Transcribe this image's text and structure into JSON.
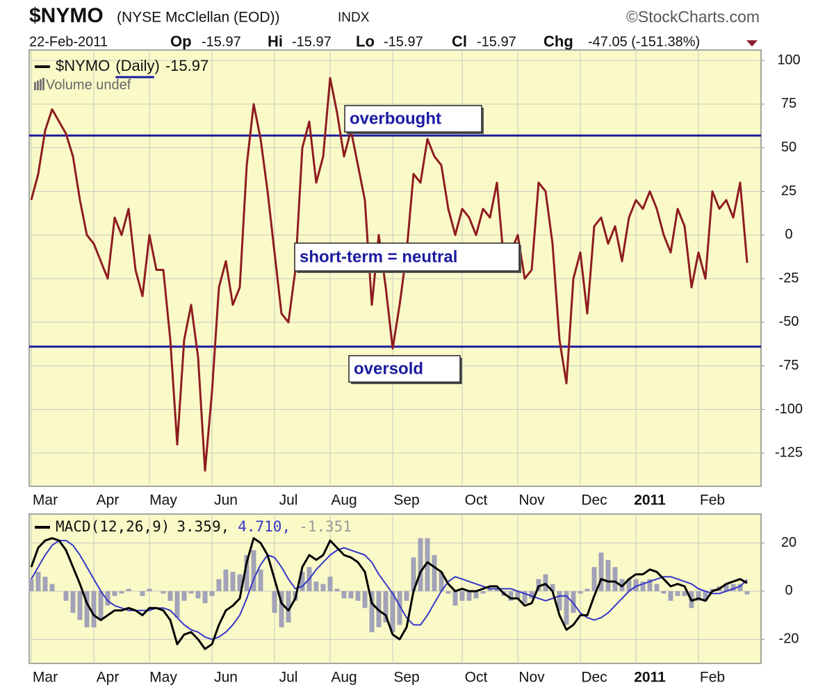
{
  "chart_data": [
    {
      "type": "line",
      "title": "$NYMO",
      "subtitle": "(NYSE McClellan (EOD))",
      "exchange": "INDX",
      "source": "©StockCharts.com",
      "date": "22-Feb-2011",
      "quote": [
        {
          "name": "Op",
          "value": -15.97
        },
        {
          "name": "Hi",
          "value": -15.97
        },
        {
          "name": "Lo",
          "value": -15.97
        },
        {
          "name": "Cl",
          "value": -15.97
        }
      ],
      "change_name": "Chg",
      "change_text": "-47.05 (-151.38%)",
      "period": "(Daily)",
      "last_value": -15.97,
      "volume_note": "Volume undef",
      "categories": [
        null,
        null,
        "Mar",
        null,
        null,
        null,
        null,
        null,
        null,
        null,
        null,
        "Apr",
        null,
        null,
        null,
        null,
        null,
        null,
        null,
        "May",
        null,
        null,
        null,
        null,
        null,
        null,
        null,
        null,
        "Jun",
        null,
        null,
        null,
        null,
        null,
        null,
        null,
        null,
        "Jul",
        null,
        null,
        null,
        null,
        null,
        null,
        null,
        "Aug",
        null,
        null,
        null,
        null,
        null,
        null,
        null,
        null,
        "Sep",
        null,
        null,
        null,
        null,
        null,
        null,
        null,
        null,
        null,
        "Oct",
        null,
        null,
        null,
        null,
        null,
        null,
        null,
        "Nov",
        null,
        null,
        null,
        null,
        null,
        null,
        null,
        null,
        "Dec",
        null,
        null,
        null,
        null,
        null,
        null,
        null,
        "2011",
        null,
        null,
        null,
        null,
        null,
        null,
        null,
        null,
        "Feb",
        null,
        null,
        null,
        null,
        null
      ],
      "series": [
        {
          "name": "$NYMO",
          "color": "#8e1c20",
          "style": "line",
          "values": [
            20,
            35,
            60,
            72,
            65,
            58,
            45,
            20,
            0,
            -5,
            -15,
            -25,
            10,
            0,
            15,
            -20,
            -35,
            0,
            -20,
            -20,
            -60,
            -120,
            -60,
            -40,
            -70,
            -135,
            -90,
            -30,
            -15,
            -40,
            -30,
            40,
            75,
            55,
            25,
            -10,
            -45,
            -50,
            -20,
            50,
            65,
            30,
            45,
            90,
            70,
            45,
            60,
            40,
            20,
            -40,
            0,
            -30,
            -65,
            -40,
            -10,
            35,
            30,
            55,
            45,
            40,
            15,
            0,
            15,
            10,
            0,
            15,
            10,
            30,
            -15,
            -10,
            0,
            -25,
            -20,
            30,
            25,
            -5,
            -60,
            -85,
            -25,
            -10,
            -45,
            5,
            10,
            -5,
            5,
            -15,
            10,
            20,
            15,
            25,
            15,
            0,
            -10,
            15,
            5,
            -30,
            -10,
            -25,
            25,
            15,
            20,
            10,
            30,
            -15.97
          ]
        }
      ],
      "reference_lines": [
        57,
        -64
      ],
      "reference_color": "#1a1aa0",
      "annotations": [
        "overbought",
        "short-term = neutral",
        "oversold"
      ],
      "annotation_color": "#1a1aa0",
      "ylim": [
        -144,
        106
      ],
      "yticks": [
        100,
        75,
        50,
        25,
        0,
        -25,
        -50,
        -75,
        -100,
        -125
      ],
      "grid": true,
      "background": "#fafac8"
    },
    {
      "type": "line",
      "categories": [
        null,
        null,
        "Mar",
        null,
        null,
        null,
        null,
        null,
        null,
        null,
        null,
        "Apr",
        null,
        null,
        null,
        null,
        null,
        null,
        null,
        "May",
        null,
        null,
        null,
        null,
        null,
        null,
        null,
        null,
        "Jun",
        null,
        null,
        null,
        null,
        null,
        null,
        null,
        null,
        "Jul",
        null,
        null,
        null,
        null,
        null,
        null,
        null,
        "Aug",
        null,
        null,
        null,
        null,
        null,
        null,
        null,
        null,
        "Sep",
        null,
        null,
        null,
        null,
        null,
        null,
        null,
        null,
        null,
        "Oct",
        null,
        null,
        null,
        null,
        null,
        null,
        null,
        "Nov",
        null,
        null,
        null,
        null,
        null,
        null,
        null,
        null,
        "Dec",
        null,
        null,
        null,
        null,
        null,
        null,
        null,
        "2011",
        null,
        null,
        null,
        null,
        null,
        null,
        null,
        null,
        "Feb",
        null,
        null,
        null,
        null,
        null
      ],
      "legend_values": [
        {
          "value": 3.359,
          "label": "3.359,"
        },
        {
          "value": 4.71,
          "label": "4.710,"
        },
        -1.351
      ],
      "series": [
        {
          "color": "#a2a2b8",
          "style": "histogram",
          "values": [
            5,
            8,
            6,
            3,
            0,
            -4,
            -9,
            -12,
            -15,
            -15,
            -12,
            -6,
            -2,
            -1,
            1,
            0,
            -2,
            1,
            0,
            -1,
            -4,
            -11,
            -4,
            -1,
            -3,
            -5,
            -2,
            5,
            9,
            8,
            7,
            15,
            17,
            9,
            0,
            -9,
            -15,
            -13,
            -4,
            8,
            10,
            4,
            3,
            6,
            1,
            -3,
            -3,
            -4,
            -7,
            -17,
            -15,
            -13,
            -17,
            -14,
            -4,
            14,
            22,
            22,
            15,
            8,
            -1,
            -6,
            -4,
            -4,
            -3,
            -1,
            1,
            1,
            -2,
            -4,
            -3,
            -5,
            -3,
            5,
            7,
            3,
            -8,
            -14,
            -9,
            -1,
            1,
            10,
            16,
            13,
            10,
            5,
            5,
            5,
            4,
            5,
            3,
            -1,
            -4,
            -2,
            -2,
            -7,
            -4,
            -4,
            1,
            2,
            3,
            3,
            3,
            -1.351
          ]
        },
        {
          "color": "#3535c8",
          "style": "line",
          "values": [
            5,
            10,
            15,
            19,
            21,
            21,
            19,
            15,
            10,
            5,
            0,
            -4,
            -6,
            -7,
            -8,
            -8,
            -8,
            -8,
            -7,
            -7,
            -8,
            -11,
            -14,
            -16,
            -17,
            -19,
            -20,
            -19,
            -17,
            -14,
            -10,
            -3,
            5,
            11,
            15,
            14,
            10,
            5,
            1,
            2,
            5,
            9,
            12,
            15,
            17,
            18,
            17,
            16,
            15,
            12,
            7,
            3,
            -1,
            -6,
            -11,
            -14,
            -14,
            -10,
            -5,
            0,
            4,
            6,
            5,
            4,
            3,
            2,
            1,
            1,
            1,
            1,
            0,
            -1,
            -2,
            -3,
            -4,
            -3,
            -2,
            -2,
            -5,
            -9,
            -11,
            -12,
            -11,
            -9,
            -6,
            -3,
            0,
            2,
            3,
            4,
            5,
            6,
            6,
            5,
            4,
            3,
            1,
            0,
            -1,
            -1,
            0,
            1,
            2,
            4.71
          ]
        },
        {
          "name": "MACD(12,26,9)",
          "color": "#000000",
          "style": "line",
          "values": [
            10,
            18,
            21,
            22,
            21,
            17,
            10,
            3,
            -5,
            -10,
            -12,
            -10,
            -8,
            -8,
            -7,
            -8,
            -10,
            -7,
            -7,
            -8,
            -12,
            -22,
            -18,
            -17,
            -20,
            -24,
            -22,
            -14,
            -8,
            -6,
            -3,
            12,
            22,
            20,
            15,
            5,
            -5,
            -8,
            -3,
            10,
            15,
            13,
            15,
            21,
            18,
            15,
            14,
            12,
            8,
            -5,
            -8,
            -10,
            -18,
            -20,
            -15,
            0,
            8,
            12,
            10,
            8,
            3,
            0,
            1,
            0,
            0,
            1,
            2,
            2,
            -1,
            -3,
            -3,
            -6,
            -5,
            2,
            3,
            0,
            -10,
            -16,
            -14,
            -10,
            -10,
            -2,
            5,
            4,
            4,
            2,
            5,
            7,
            7,
            9,
            8,
            5,
            2,
            3,
            2,
            -4,
            -3,
            -4,
            0,
            1,
            3,
            4,
            5,
            3.359
          ]
        }
      ],
      "ylim": [
        -30,
        32
      ],
      "yticks": [
        20,
        0,
        -20
      ],
      "grid": true,
      "background": "#fafac8"
    }
  ]
}
